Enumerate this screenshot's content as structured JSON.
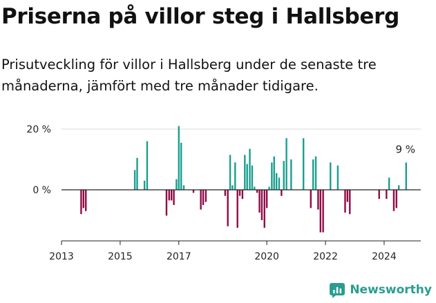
{
  "header": {
    "title": "Priserna på villor steg i Hallsberg",
    "subtitle": "Prisutveckling för villor i Hallsberg under de senaste tre månaderna, jämfört med tre månader tidigare."
  },
  "brand": {
    "name": "Newsworthy",
    "icon": "newsworthy-logo-icon",
    "color": "#2a9d8f"
  },
  "colors": {
    "positive": "#1a9e8f",
    "negative": "#8e0b46",
    "grid": "#d9d9d9",
    "zero": "#222222"
  },
  "chart_data": {
    "type": "bar",
    "xlim": [
      2013,
      2025.25
    ],
    "ylim": [
      -17,
      21
    ],
    "x_ticks": [
      2013,
      2015,
      2017,
      2020,
      2022,
      2024
    ],
    "x_tick_labels": [
      "2013",
      "2015",
      "2017",
      "2020",
      "2022",
      "2024"
    ],
    "y_ticks": [
      20,
      0
    ],
    "y_tick_labels": [
      "20 %",
      "0 %"
    ],
    "grid": true,
    "annotation": {
      "text": "9 %",
      "x": 2024.75,
      "y": 9
    },
    "points": [
      {
        "x": 2013.67,
        "y": -8
      },
      {
        "x": 2013.75,
        "y": -6
      },
      {
        "x": 2013.83,
        "y": -7
      },
      {
        "x": 2015.5,
        "y": 6.5
      },
      {
        "x": 2015.58,
        "y": 10.5
      },
      {
        "x": 2015.83,
        "y": 3
      },
      {
        "x": 2015.92,
        "y": 16
      },
      {
        "x": 2016.58,
        "y": -8.5
      },
      {
        "x": 2016.67,
        "y": -3.5
      },
      {
        "x": 2016.75,
        "y": -3.5
      },
      {
        "x": 2016.83,
        "y": -5
      },
      {
        "x": 2016.92,
        "y": 3.5
      },
      {
        "x": 2017.0,
        "y": 21
      },
      {
        "x": 2017.08,
        "y": 15.5
      },
      {
        "x": 2017.17,
        "y": 1.5
      },
      {
        "x": 2017.5,
        "y": -1
      },
      {
        "x": 2017.75,
        "y": -6.5
      },
      {
        "x": 2017.83,
        "y": -5
      },
      {
        "x": 2017.92,
        "y": -4
      },
      {
        "x": 2018.58,
        "y": -2
      },
      {
        "x": 2018.67,
        "y": -12
      },
      {
        "x": 2018.75,
        "y": 11.5
      },
      {
        "x": 2018.83,
        "y": 1.5
      },
      {
        "x": 2018.92,
        "y": 9
      },
      {
        "x": 2019.0,
        "y": -12.5
      },
      {
        "x": 2019.08,
        "y": -2
      },
      {
        "x": 2019.17,
        "y": -3
      },
      {
        "x": 2019.25,
        "y": 11.5
      },
      {
        "x": 2019.33,
        "y": 8.5
      },
      {
        "x": 2019.42,
        "y": 13.5
      },
      {
        "x": 2019.5,
        "y": 8
      },
      {
        "x": 2019.58,
        "y": 1
      },
      {
        "x": 2019.67,
        "y": -1
      },
      {
        "x": 2019.75,
        "y": -7.5
      },
      {
        "x": 2019.83,
        "y": -10
      },
      {
        "x": 2019.92,
        "y": -12.5
      },
      {
        "x": 2020.0,
        "y": -6
      },
      {
        "x": 2020.08,
        "y": 1
      },
      {
        "x": 2020.17,
        "y": 9
      },
      {
        "x": 2020.25,
        "y": 11
      },
      {
        "x": 2020.33,
        "y": 5.5
      },
      {
        "x": 2020.42,
        "y": 4
      },
      {
        "x": 2020.5,
        "y": -2
      },
      {
        "x": 2020.58,
        "y": 9.5
      },
      {
        "x": 2020.67,
        "y": 17
      },
      {
        "x": 2020.83,
        "y": 10
      },
      {
        "x": 2021.25,
        "y": 17
      },
      {
        "x": 2021.5,
        "y": -6
      },
      {
        "x": 2021.58,
        "y": 10
      },
      {
        "x": 2021.67,
        "y": 11
      },
      {
        "x": 2021.75,
        "y": -6.5
      },
      {
        "x": 2021.83,
        "y": -14
      },
      {
        "x": 2021.92,
        "y": -14
      },
      {
        "x": 2022.17,
        "y": 9
      },
      {
        "x": 2022.42,
        "y": 8
      },
      {
        "x": 2022.67,
        "y": -7.5
      },
      {
        "x": 2022.75,
        "y": -4
      },
      {
        "x": 2022.83,
        "y": -8
      },
      {
        "x": 2023.83,
        "y": -3
      },
      {
        "x": 2024.08,
        "y": -3
      },
      {
        "x": 2024.17,
        "y": 4
      },
      {
        "x": 2024.33,
        "y": -7
      },
      {
        "x": 2024.42,
        "y": -6
      },
      {
        "x": 2024.5,
        "y": 1.5
      },
      {
        "x": 2024.75,
        "y": 9
      }
    ]
  }
}
